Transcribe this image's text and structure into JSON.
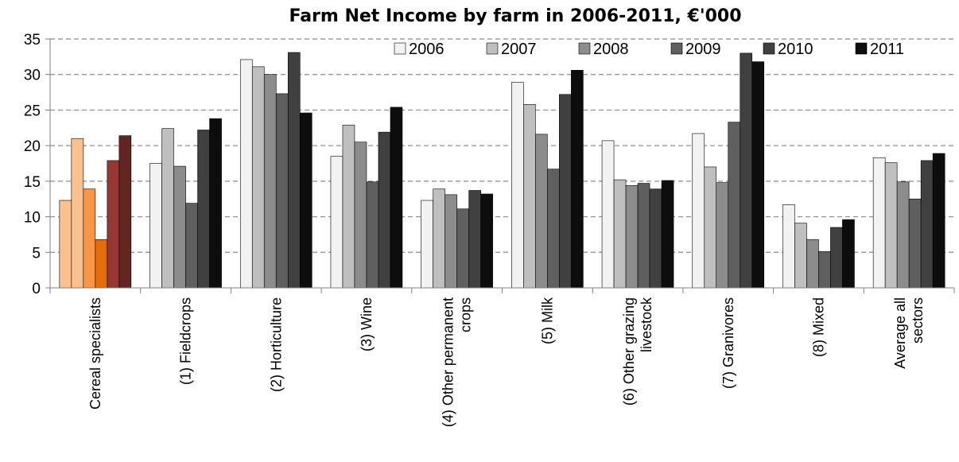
{
  "chart_data": {
    "type": "bar",
    "title": "Farm Net Income by farm in 2006-2011, €'000",
    "xlabel": "",
    "ylabel": "",
    "ylim": [
      0,
      35
    ],
    "yticks": [
      0,
      5,
      10,
      15,
      20,
      25,
      30,
      35
    ],
    "grid": true,
    "legend_position": "top-right",
    "categories": [
      [
        "Cereal specialists"
      ],
      [
        "(1) Fieldcrops"
      ],
      [
        "(2) Horticulture"
      ],
      [
        "(3) Wine"
      ],
      [
        "(4) Other permanent",
        "crops"
      ],
      [
        "(5) Milk"
      ],
      [
        "(6) Other grazing",
        "livestock"
      ],
      [
        "(7) Granivores"
      ],
      [
        "(8) Mixed"
      ],
      [
        "Average all",
        "sectors"
      ]
    ],
    "series": [
      {
        "name": "2006",
        "color": "#f2f2f2",
        "values": [
          12.3,
          17.5,
          32.1,
          18.5,
          12.3,
          28.9,
          20.7,
          21.7,
          11.7,
          18.3
        ]
      },
      {
        "name": "2007",
        "color": "#bfbfbf",
        "values": [
          21.0,
          22.4,
          31.1,
          22.9,
          13.9,
          25.8,
          15.2,
          17.0,
          9.1,
          17.6
        ]
      },
      {
        "name": "2008",
        "color": "#8c8c8c",
        "values": [
          13.9,
          17.1,
          30.0,
          20.5,
          13.1,
          21.6,
          14.4,
          14.8,
          6.8,
          14.9
        ]
      },
      {
        "name": "2009",
        "color": "#5f5f5f",
        "values": [
          6.8,
          11.9,
          27.3,
          14.9,
          11.1,
          16.7,
          14.7,
          23.3,
          5.1,
          12.5
        ]
      },
      {
        "name": "2010",
        "color": "#404040",
        "values": [
          17.9,
          22.2,
          33.1,
          21.9,
          13.7,
          27.2,
          13.9,
          33.0,
          8.5,
          17.9
        ]
      },
      {
        "name": "2011",
        "color": "#0d0d0d",
        "values": [
          21.4,
          23.8,
          24.6,
          25.4,
          13.2,
          30.6,
          15.1,
          31.8,
          9.6,
          18.9
        ]
      }
    ],
    "highlight_category_colors": [
      "#fac08f",
      "#fac08f",
      "#f79646",
      "#e46c0a",
      "#953734",
      "#632523"
    ]
  }
}
